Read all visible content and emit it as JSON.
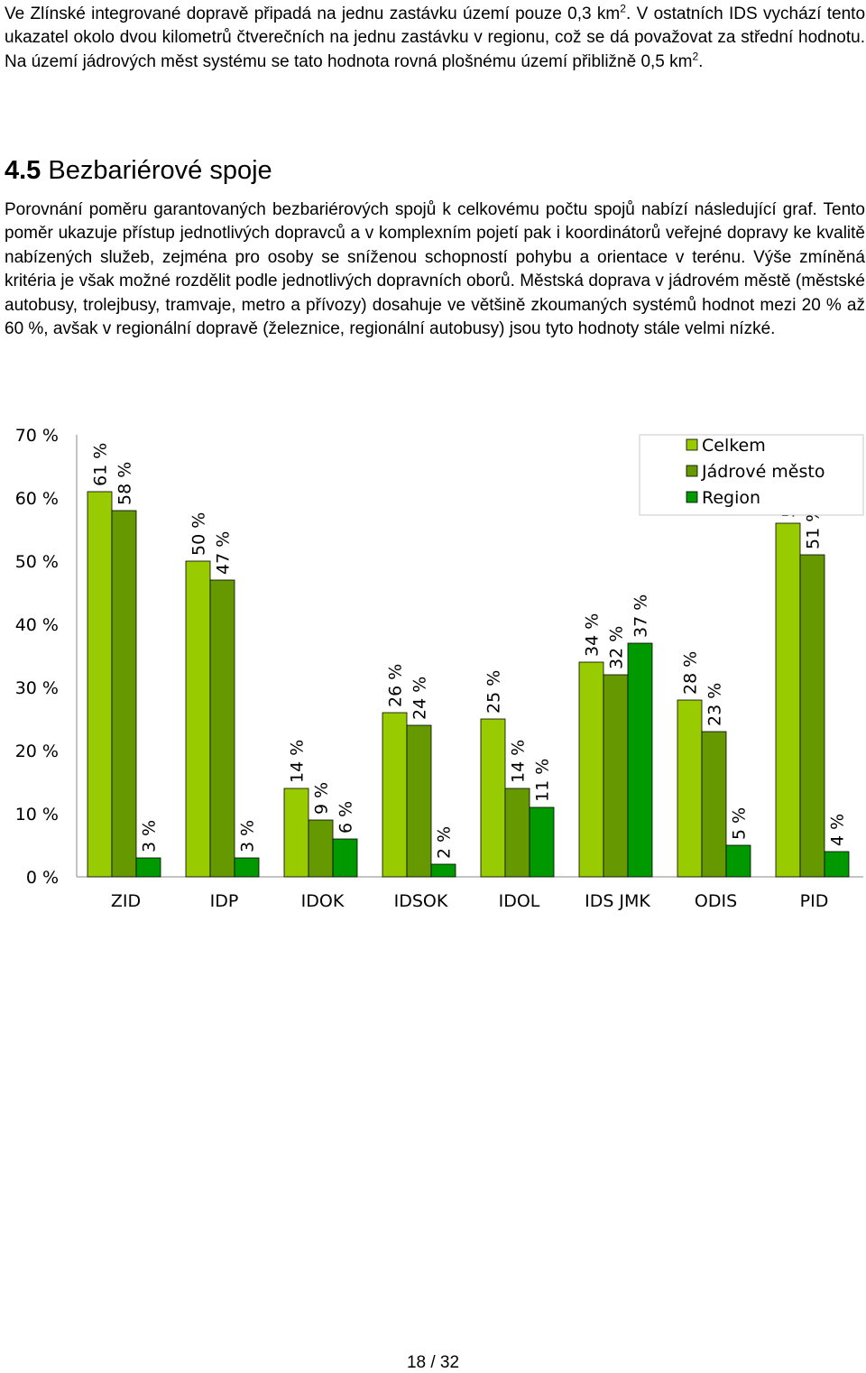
{
  "intro": {
    "before": "Ve Zlínské integrované dopravě připadá na jednu zastávku území pouze 0,3 km",
    "sup1": "2",
    "middle": ". V ostatních IDS vychází tento ukazatel okolo dvou kilometrů čtverečních na jednu zastávku v regionu, což se dá považovat za střední hodnotu. Na území jádrových měst systému se tato hodnota rovná plošnému území přibližně 0,5 km",
    "sup2": "2",
    "after": "."
  },
  "section": {
    "number": "4.5",
    "title": "Bezbariérové spoje",
    "body": "Porovnání poměru garantovaných bezbariérových spojů k celkovému počtu spojů nabízí následující graf. Tento poměr ukazuje přístup jednotlivých dopravců a v komplexním pojetí pak i koordinátorů veřejné dopravy ke kvalitě nabízených služeb, zejména pro osoby se sníženou schopností pohybu a orientace v terénu. Výše zmíněná kritéria je však možné rozdělit podle jednotlivých dopravních oborů. Městská doprava v jádrovém městě (městské autobusy, trolejbusy, tramvaje, metro a přívozy) dosahuje ve většině zkoumaných systémů hodnot mezi 20 % až 60 %, avšak v regionální dopravě (železnice, regionální autobusy) jsou tyto hodnoty stále velmi nízké."
  },
  "chart_data": {
    "type": "bar",
    "categories": [
      "ZID",
      "IDP",
      "IDOK",
      "IDSOK",
      "IDOL",
      "IDS JMK",
      "ODIS",
      "PID"
    ],
    "series": [
      {
        "name": "Celkem",
        "values": [
          61,
          50,
          14,
          26,
          25,
          34,
          28,
          56
        ],
        "labels": [
          "61 %",
          "50 %",
          "14 %",
          "26 %",
          "25 %",
          "34 %",
          "28 %",
          "56 %"
        ],
        "color": "#99cc00"
      },
      {
        "name": "Jádrové město",
        "values": [
          58,
          47,
          9,
          24,
          14,
          32,
          23,
          51
        ],
        "labels": [
          "58 %",
          "47 %",
          "9 %",
          "24 %",
          "14 %",
          "32 %",
          "23 %",
          "51 %"
        ],
        "color": "#669900"
      },
      {
        "name": "Region",
        "values": [
          3,
          3,
          6,
          2,
          11,
          37,
          5,
          4
        ],
        "labels": [
          "3 %",
          "3 %",
          "6 %",
          "2 %",
          "11 %",
          "37 %",
          "5 %",
          "4 %"
        ],
        "color": "#009900"
      }
    ],
    "yticks": [
      "0 %",
      "10 %",
      "20 %",
      "30 %",
      "40 %",
      "50 %",
      "60 %",
      "70 %"
    ],
    "ylim": [
      0,
      70
    ],
    "grid": false,
    "legend_position": "top-right"
  },
  "footer": {
    "page": "18 / 32"
  }
}
